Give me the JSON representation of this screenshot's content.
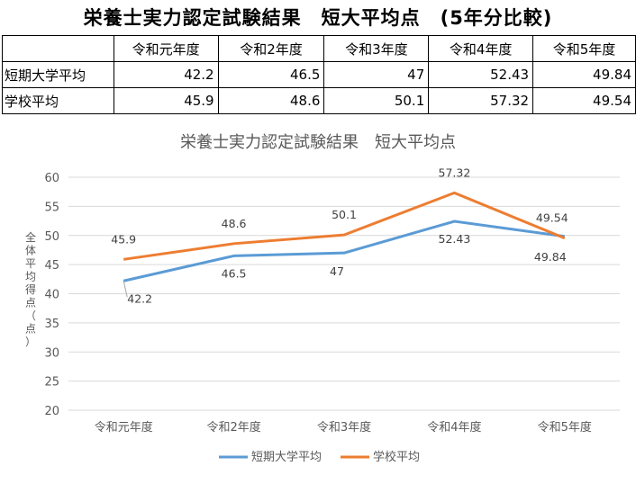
{
  "page": {
    "title": "栄養士実力認定試験結果　短大平均点　(5年分比較)"
  },
  "table": {
    "columns": [
      "",
      "令和元年度",
      "令和2年度",
      "令和3年度",
      "令和4年度",
      "令和5年度"
    ],
    "rows": [
      {
        "label": "短期大学平均",
        "values": [
          "42.2",
          "46.5",
          "47",
          "52.43",
          "49.84"
        ]
      },
      {
        "label": "学校平均",
        "values": [
          "45.9",
          "48.6",
          "50.1",
          "57.32",
          "49.54"
        ]
      }
    ]
  },
  "chart_data": {
    "type": "line",
    "title": "栄養士実力認定試験結果　短大平均点",
    "ylabel": "全体平均得点（点）",
    "xlabel": "",
    "categories": [
      "令和元年度",
      "令和2年度",
      "令和3年度",
      "令和4年度",
      "令和5年度"
    ],
    "ylim": [
      20,
      60
    ],
    "yticks": [
      20,
      25,
      30,
      35,
      40,
      45,
      50,
      55,
      60
    ],
    "grid": true,
    "legend": "bottom",
    "series": [
      {
        "name": "短期大学平均",
        "color": "#5B9BD5",
        "values": [
          42.2,
          46.5,
          47,
          52.43,
          49.84
        ],
        "labels": [
          "42.2",
          "46.5",
          "47",
          "52.43",
          "49.84"
        ]
      },
      {
        "name": "学校平均",
        "color": "#ED7D31",
        "values": [
          45.9,
          48.6,
          50.1,
          57.32,
          49.54
        ],
        "labels": [
          "45.9",
          "48.6",
          "50.1",
          "57.32",
          "49.54"
        ]
      }
    ]
  }
}
